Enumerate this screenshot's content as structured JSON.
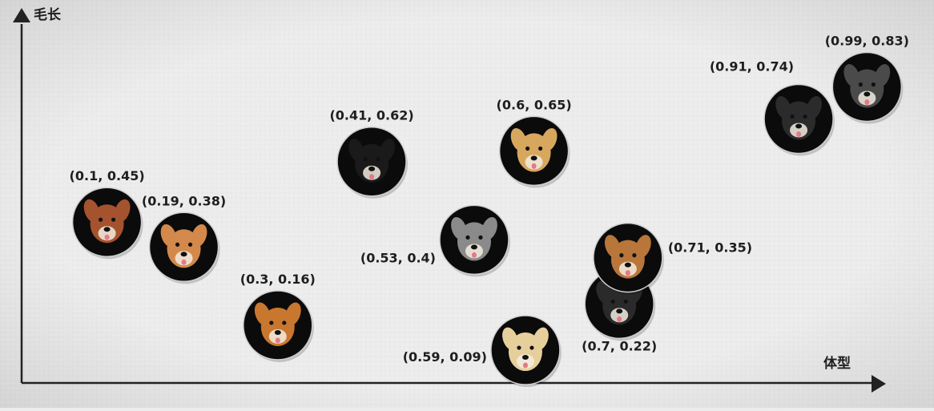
{
  "chart_data": {
    "type": "scatter",
    "xlabel": "体型",
    "ylabel": "毛长",
    "xlim": [
      0,
      1
    ],
    "ylim": [
      0,
      1
    ],
    "grid": false,
    "points": [
      {
        "x": 0.1,
        "y": 0.45,
        "label": "(0.1, 0.45)",
        "icon": "poodle-icon",
        "color": "#a5532e"
      },
      {
        "x": 0.19,
        "y": 0.38,
        "label": "(0.19, 0.38)",
        "icon": "corgi-icon",
        "color": "#d2894b"
      },
      {
        "x": 0.3,
        "y": 0.16,
        "label": "(0.3, 0.16)",
        "icon": "shiba-icon",
        "color": "#c9772f"
      },
      {
        "x": 0.41,
        "y": 0.62,
        "label": "(0.41, 0.62)",
        "icon": "border-collie-icon",
        "color": "#1a1a1a"
      },
      {
        "x": 0.53,
        "y": 0.4,
        "label": "(0.53, 0.4)",
        "icon": "husky-icon",
        "color": "#8a8a8a"
      },
      {
        "x": 0.59,
        "y": 0.09,
        "label": "(0.59, 0.09)",
        "icon": "labrador-icon",
        "color": "#e7cf9c"
      },
      {
        "x": 0.6,
        "y": 0.65,
        "label": "(0.6, 0.65)",
        "icon": "golden-retriever-icon",
        "color": "#d8a75e"
      },
      {
        "x": 0.7,
        "y": 0.22,
        "label": "(0.7, 0.22)",
        "icon": "dark-dog-icon",
        "color": "#2a2a2a"
      },
      {
        "x": 0.71,
        "y": 0.35,
        "label": "(0.71, 0.35)",
        "icon": "german-shepherd-icon",
        "color": "#b8763a"
      },
      {
        "x": 0.91,
        "y": 0.74,
        "label": "(0.91, 0.74)",
        "icon": "bernese-icon",
        "color": "#2b2b2b"
      },
      {
        "x": 0.99,
        "y": 0.83,
        "label": "(0.99, 0.83)",
        "icon": "caucasian-shepherd-icon",
        "color": "#4a4a4a"
      }
    ]
  }
}
